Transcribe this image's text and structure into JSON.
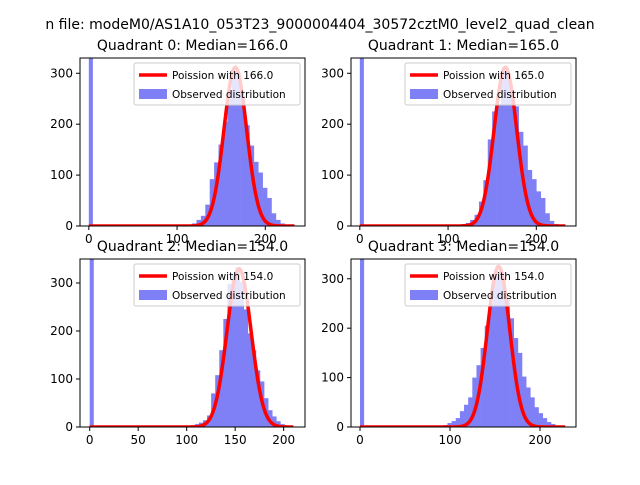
{
  "figure": {
    "suptitle": "n file: modeM0/AS1A10_053T23_9000004404_30572cztM0_level2_quad_clean"
  },
  "colors": {
    "hist": "#7f7ff6",
    "fit": "#ff0000",
    "axis": "#000000",
    "background": "#ffffff"
  },
  "chart_data": [
    {
      "type": "histogram",
      "title": "Quadrant 0: Median=166.0",
      "xlim": [
        -10,
        245
      ],
      "ylim": [
        0,
        330
      ],
      "xticks": [
        0,
        100,
        200
      ],
      "yticks": [
        0,
        100,
        200,
        300
      ],
      "legend": {
        "location": "upper right",
        "fit_label": "Poission with 166.0",
        "hist_label": "Observed distribution"
      },
      "poisson_mean": 166.0,
      "fit_peak": 312,
      "zero_bin": {
        "x0": 0,
        "x1": 4.6,
        "count": 330
      },
      "bin_edges": [
        112,
        117,
        122,
        127,
        132,
        137,
        142,
        147,
        152,
        157,
        162,
        167,
        172,
        177,
        182,
        187,
        192,
        197,
        202,
        207,
        212,
        217,
        222,
        227,
        232
      ],
      "counts": [
        3,
        5,
        12,
        20,
        42,
        92,
        125,
        160,
        205,
        250,
        302,
        300,
        255,
        198,
        158,
        126,
        105,
        75,
        55,
        25,
        12,
        5,
        3,
        1
      ]
    },
    {
      "type": "histogram",
      "title": "Quadrant 1: Median=165.0",
      "xlim": [
        -10,
        245
      ],
      "ylim": [
        0,
        330
      ],
      "xticks": [
        0,
        100,
        200
      ],
      "yticks": [
        0,
        100,
        200,
        300
      ],
      "legend": {
        "location": "upper right",
        "fit_label": "Poission with 165.0",
        "hist_label": "Observed distribution"
      },
      "poisson_mean": 165.0,
      "fit_peak": 312,
      "zero_bin": {
        "x0": 0,
        "x1": 4.6,
        "count": 330
      },
      "bin_edges": [
        110,
        115,
        120,
        125,
        130,
        135,
        140,
        145,
        150,
        155,
        160,
        165,
        170,
        175,
        180,
        185,
        190,
        195,
        200,
        205,
        210,
        215,
        220,
        225,
        230
      ],
      "counts": [
        2,
        4,
        6,
        12,
        22,
        48,
        90,
        170,
        225,
        240,
        305,
        300,
        262,
        235,
        185,
        158,
        110,
        92,
        68,
        55,
        25,
        10,
        4,
        1
      ]
    },
    {
      "type": "histogram",
      "title": "Quadrant 2: Median=154.0",
      "xlim": [
        -10,
        222
      ],
      "ylim": [
        0,
        350
      ],
      "xticks": [
        0,
        50,
        100,
        150,
        200
      ],
      "yticks": [
        0,
        100,
        200,
        300
      ],
      "legend": {
        "location": "upper right",
        "fit_label": "Poission with 154.0",
        "hist_label": "Observed distribution"
      },
      "poisson_mean": 154.0,
      "fit_peak": 330,
      "zero_bin": {
        "x0": 0,
        "x1": 4.2,
        "count": 350
      },
      "bin_edges": [
        100,
        104.2,
        108.4,
        112.6,
        116.8,
        121,
        125.2,
        129.4,
        133.6,
        137.8,
        142,
        146.2,
        150.4,
        154.6,
        158.8,
        163,
        167.2,
        171.4,
        175.6,
        179.8,
        184,
        188.2,
        192.4,
        196.6,
        200.8,
        205,
        209.2,
        213.4
      ],
      "counts": [
        1,
        3,
        6,
        9,
        14,
        24,
        70,
        108,
        160,
        225,
        298,
        320,
        332,
        302,
        245,
        195,
        160,
        118,
        95,
        60,
        35,
        22,
        12,
        6,
        3,
        2,
        1
      ]
    },
    {
      "type": "histogram",
      "title": "Quadrant 3: Median=154.0",
      "xlim": [
        -10,
        240
      ],
      "ylim": [
        0,
        340
      ],
      "xticks": [
        0,
        100,
        200
      ],
      "yticks": [
        0,
        100,
        200,
        300
      ],
      "legend": {
        "location": "upper right",
        "fit_label": "Poission with 154.0",
        "hist_label": "Observed distribution"
      },
      "poisson_mean": 154.0,
      "fit_peak": 325,
      "zero_bin": {
        "x0": 0,
        "x1": 4.6,
        "count": 340
      },
      "bin_edges": [
        88,
        92.6,
        97.2,
        101.8,
        106.4,
        111,
        115.6,
        120.2,
        124.8,
        129.4,
        134,
        138.6,
        143.2,
        147.8,
        152.4,
        157,
        161.6,
        166.2,
        170.8,
        175.4,
        180,
        184.6,
        189.2,
        193.8,
        198.4,
        203,
        207.6,
        212.2,
        216.8,
        221.4,
        226
      ],
      "counts": [
        2,
        4,
        8,
        12,
        18,
        32,
        45,
        60,
        100,
        125,
        160,
        205,
        250,
        305,
        315,
        300,
        262,
        220,
        180,
        150,
        102,
        80,
        60,
        40,
        28,
        18,
        10,
        6,
        3,
        1
      ]
    }
  ]
}
